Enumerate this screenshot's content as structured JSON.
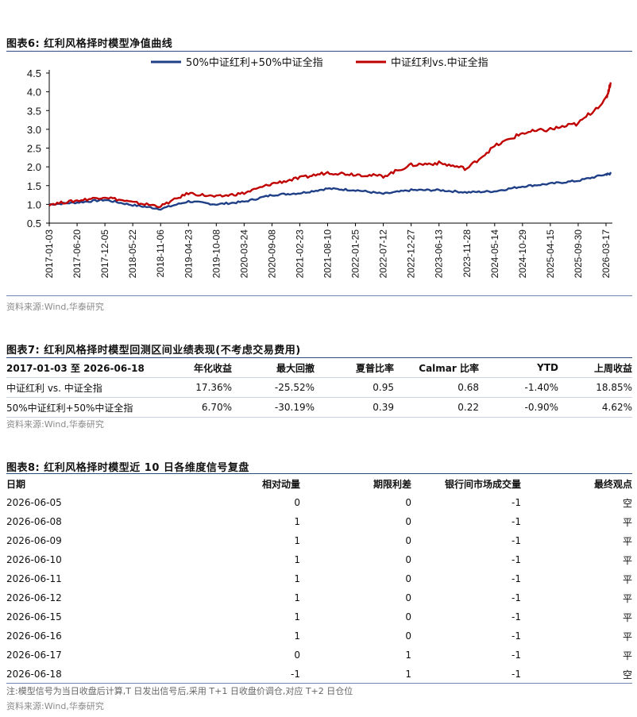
{
  "fig6": {
    "title": "图表6:  红利风格择时模型净值曲线"
  },
  "chart_data": {
    "type": "line",
    "ylim": [
      0.5,
      4.5
    ],
    "yticks": [
      "0.5",
      "1.0",
      "1.5",
      "2.0",
      "2.5",
      "3.0",
      "3.5",
      "4.0",
      "4.5"
    ],
    "xticks": [
      "2017-01-03",
      "2017-06-20",
      "2017-12-05",
      "2018-05-22",
      "2018-11-06",
      "2019-04-23",
      "2019-10-08",
      "2020-03-24",
      "2020-09-08",
      "2021-02-23",
      "2021-08-10",
      "2022-01-25",
      "2022-07-12",
      "2022-12-27",
      "2023-06-13",
      "2023-11-28",
      "2024-05-14",
      "2024-10-29",
      "2025-04-15",
      "2025-09-30",
      "2026-03-17"
    ],
    "legend_position": "top-center",
    "x": [
      "2017-01-03",
      "2017-06-20",
      "2017-12-05",
      "2018-05-22",
      "2018-11-06",
      "2019-04-23",
      "2019-10-08",
      "2020-03-24",
      "2020-09-08",
      "2021-02-23",
      "2021-08-10",
      "2022-01-25",
      "2022-07-12",
      "2022-12-27",
      "2023-06-13",
      "2023-11-28",
      "2024-05-14",
      "2024-10-29",
      "2025-04-15",
      "2025-09-30",
      "2026-03-17",
      "2026-06-18"
    ],
    "series": [
      {
        "name": "50%中证红利+50%中证全指",
        "color": "#1f3f87",
        "values": [
          1.0,
          1.05,
          1.12,
          0.98,
          0.88,
          1.08,
          1.0,
          1.07,
          1.25,
          1.3,
          1.42,
          1.38,
          1.28,
          1.38,
          1.38,
          1.32,
          1.35,
          1.48,
          1.55,
          1.63,
          1.8,
          1.82
        ]
      },
      {
        "name": "中证红利vs.中证全指",
        "color": "#c00000",
        "values": [
          1.0,
          1.1,
          1.2,
          1.05,
          0.95,
          1.3,
          1.2,
          1.3,
          1.55,
          1.7,
          1.85,
          1.8,
          1.75,
          2.05,
          2.1,
          1.95,
          2.55,
          2.9,
          3.0,
          3.15,
          3.8,
          4.25
        ]
      }
    ]
  },
  "fig6_source": "资料来源:Wind,华泰研究",
  "fig7": {
    "title": "图表7:  红利风格择时模型回测区间业绩表现(不考虑交易费用)",
    "headers": [
      "2017-01-03 至 2026-06-18",
      "年化收益",
      "最大回撤",
      "夏普比率",
      "Calmar 比率",
      "YTD",
      "上周收益"
    ],
    "rows": [
      [
        "中证红利 vs. 中证全指",
        "17.36%",
        "-25.52%",
        "0.95",
        "0.68",
        "-1.40%",
        "18.85%"
      ],
      [
        "50%中证红利+50%中证全指",
        "6.70%",
        "-30.19%",
        "0.39",
        "0.22",
        "-0.90%",
        "4.62%"
      ]
    ],
    "source": "资料来源:Wind,华泰研究"
  },
  "fig8": {
    "title": "图表8:  红利风格择时模型近 10 日各维度信号复盘",
    "headers": [
      "日期",
      "相对动量",
      "期限利差",
      "银行间市场成交量",
      "最终观点"
    ],
    "rows": [
      [
        "2026-06-05",
        "0",
        "0",
        "-1",
        "空"
      ],
      [
        "2026-06-08",
        "1",
        "0",
        "-1",
        "平"
      ],
      [
        "2026-06-09",
        "1",
        "0",
        "-1",
        "平"
      ],
      [
        "2026-06-10",
        "1",
        "0",
        "-1",
        "平"
      ],
      [
        "2026-06-11",
        "1",
        "0",
        "-1",
        "平"
      ],
      [
        "2026-06-12",
        "1",
        "0",
        "-1",
        "平"
      ],
      [
        "2026-06-15",
        "1",
        "0",
        "-1",
        "平"
      ],
      [
        "2026-06-16",
        "1",
        "0",
        "-1",
        "平"
      ],
      [
        "2026-06-17",
        "0",
        "1",
        "-1",
        "平"
      ],
      [
        "2026-06-18",
        "-1",
        "1",
        "-1",
        "空"
      ]
    ],
    "note": "注:模型信号为当日收盘后计算,T 日发出信号后,采用 T+1 日收盘价调仓,对应 T+2 日仓位",
    "source": "资料来源:Wind,华泰研究"
  }
}
